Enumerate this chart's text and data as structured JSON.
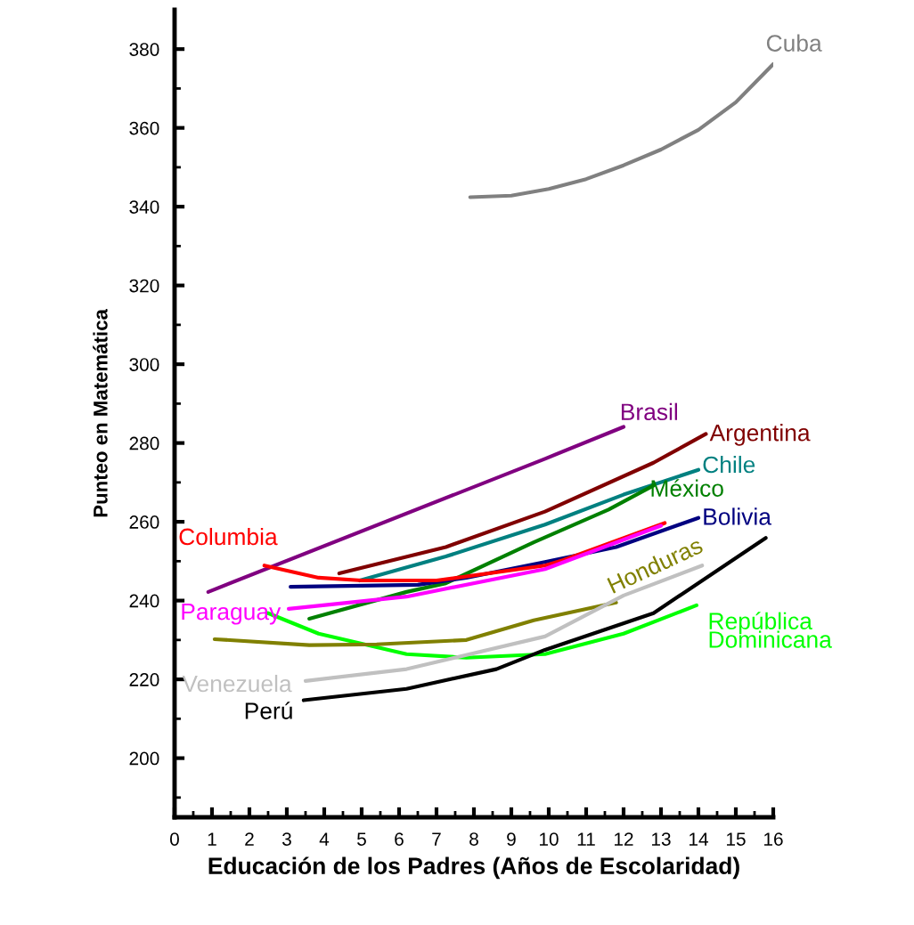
{
  "chart_data": {
    "type": "line",
    "xlabel": "Educación de los Padres (Años de Escolaridad)",
    "ylabel": "Punteo en Matemática",
    "xlim": [
      0,
      16
    ],
    "ylim": [
      185,
      390
    ],
    "xticks": [
      0,
      {
        "value": 0.5,
        "label": null
      },
      1,
      {
        "value": 1.5,
        "label": null
      },
      2,
      {
        "value": 2.5,
        "label": null
      },
      3,
      {
        "value": 3.5,
        "label": null
      },
      4,
      {
        "value": 4.5,
        "label": null
      },
      5,
      {
        "value": 5.5,
        "label": null
      },
      6,
      {
        "value": 6.5,
        "label": null
      },
      7,
      {
        "value": 7.5,
        "label": null
      },
      8,
      {
        "value": 8.5,
        "label": null
      },
      9,
      {
        "value": 9.5,
        "label": null
      },
      10,
      {
        "value": 10.5,
        "label": null
      },
      11,
      {
        "value": 11.5,
        "label": null
      },
      12,
      {
        "value": 12.5,
        "label": null
      },
      13,
      {
        "value": 13.5,
        "label": null
      },
      14,
      {
        "value": 14.5,
        "label": null
      },
      15,
      {
        "value": 15.5,
        "label": null
      },
      16
    ],
    "yticks": [
      {
        "value": 190,
        "label": null
      },
      200,
      {
        "value": 210,
        "label": null
      },
      220,
      {
        "value": 230,
        "label": null
      },
      240,
      {
        "value": 250,
        "label": null
      },
      260,
      {
        "value": 270,
        "label": null
      },
      280,
      {
        "value": 290,
        "label": null
      },
      300,
      {
        "value": 310,
        "label": null
      },
      320,
      {
        "value": 330,
        "label": null
      },
      340,
      {
        "value": 350,
        "label": null
      },
      360,
      {
        "value": 370,
        "label": null
      },
      380
    ],
    "grid": false,
    "legend": false,
    "marker": "none",
    "line_style": "solid",
    "series": [
      {
        "name": "Cuba",
        "color": "#808080",
        "x": [
          7.9,
          9,
          10,
          11,
          12,
          13,
          14,
          15,
          16
        ],
        "values": [
          342.4,
          342.8,
          344.5,
          347,
          350.5,
          354.5,
          359.5,
          366.5,
          376.2
        ]
      },
      {
        "name": "Brasil",
        "color": "#800080",
        "x": [
          0.9,
          9.9,
          12.0
        ],
        "values": [
          242.2,
          276.0,
          284.1
        ]
      },
      {
        "name": "Argentina",
        "color": "#800000",
        "x": [
          4.4,
          7.25,
          9.9,
          12.8,
          14.2
        ],
        "values": [
          246.9,
          253.6,
          262.6,
          275,
          282.3
        ]
      },
      {
        "name": "Chile",
        "color": "#008080",
        "x": [
          4.95,
          7.25,
          9.9,
          12.0,
          14.0
        ],
        "values": [
          245.1,
          251.2,
          259.3,
          266.9,
          273.2
        ]
      },
      {
        "name": "México",
        "color": "#008000",
        "x": [
          3.6,
          6.2,
          7.25,
          9.6,
          11.6,
          12.8
        ],
        "values": [
          235.4,
          242.2,
          244.4,
          254.8,
          263.1,
          269.2
        ]
      },
      {
        "name": "Bolivia",
        "color": "#000080",
        "x": [
          3.1,
          6.5,
          7.8,
          9.9,
          11.8,
          14.0
        ],
        "values": [
          243.5,
          244,
          245.8,
          249.8,
          253.6,
          261
        ]
      },
      {
        "name": "Columbia",
        "color": "#ff0000",
        "x": [
          2.4,
          3.85,
          5.0,
          7.0,
          9.9,
          10.4,
          13.1
        ],
        "values": [
          248.9,
          245.8,
          245.1,
          245.1,
          248.9,
          250.3,
          259.7
        ]
      },
      {
        "name": "Paraguay",
        "color": "#ff00ff",
        "x": [
          3.05,
          6.2,
          9.9,
          13.0
        ],
        "values": [
          237.9,
          241,
          248,
          259
        ]
      },
      {
        "name": "República\nDominicana",
        "color": "#00ff00",
        "x": [
          2.5,
          3.85,
          6.2,
          7.8,
          9.9,
          12.0,
          13.95
        ],
        "values": [
          236.8,
          231.6,
          226.4,
          225.5,
          226.4,
          231.6,
          238.8
        ]
      },
      {
        "name": "Honduras",
        "color": "#808000",
        "x": [
          1.07,
          3.6,
          5.4,
          7.8,
          9.6,
          11.8
        ],
        "values": [
          230.2,
          228.7,
          228.9,
          230,
          235,
          239.5
        ]
      },
      {
        "name": "Venezuela",
        "color": "#c0c0c0",
        "x": [
          3.5,
          6.2,
          9.9,
          12.0,
          14.1
        ],
        "values": [
          219.6,
          222.6,
          230.9,
          241.3,
          248.9
        ]
      },
      {
        "name": "Perú",
        "color": "#000000",
        "x": [
          3.45,
          6.2,
          8.6,
          9.9,
          12.8,
          15.8
        ],
        "values": [
          214.7,
          217.6,
          222.6,
          227.5,
          236.8,
          255.9
        ]
      }
    ]
  }
}
